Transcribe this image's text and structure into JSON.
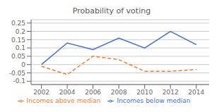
{
  "chart_data": {
    "type": "line",
    "title": "Probability of voting",
    "x": [
      2002,
      2004,
      2006,
      2008,
      2010,
      2012,
      2014
    ],
    "series": [
      {
        "name": "Incomes below median",
        "color": "#4472C4",
        "line_style": "solid",
        "values": [
          0.0,
          0.13,
          0.09,
          0.16,
          0.1,
          0.2,
          0.12
        ]
      },
      {
        "name": "Incomes above median",
        "color": "#ED7D31",
        "line_style": "dashed",
        "values": [
          -0.01,
          -0.06,
          0.05,
          0.03,
          -0.04,
          -0.04,
          -0.03
        ]
      }
    ],
    "xlim": [
      2001.2,
      2015.0
    ],
    "xticks": [
      2002,
      2004,
      2006,
      2008,
      2010,
      2012,
      2014
    ],
    "ylim": [
      -0.12,
      0.27
    ],
    "yticks": [
      -0.1,
      -0.05,
      0.0,
      0.05,
      0.1,
      0.15,
      0.2,
      0.25
    ],
    "grid": true,
    "legend": "bottom"
  }
}
